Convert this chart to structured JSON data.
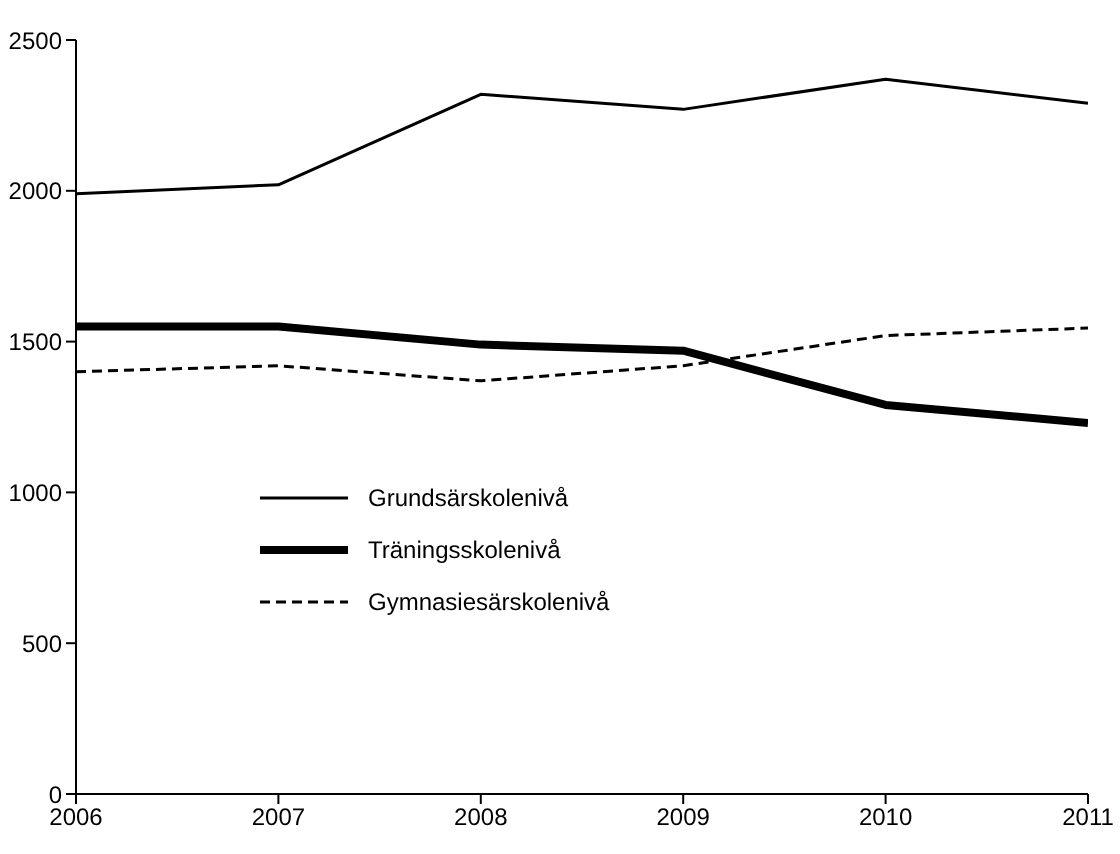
{
  "chart_data": {
    "type": "line",
    "x": [
      2006,
      2007,
      2008,
      2009,
      2010,
      2011
    ],
    "xlim": [
      2006,
      2011
    ],
    "xticks": [
      2006,
      2007,
      2008,
      2009,
      2010,
      2011
    ],
    "ylim": [
      0,
      2500
    ],
    "yticks": [
      0,
      500,
      1000,
      1500,
      2000,
      2500
    ],
    "grid": false,
    "legend": "left",
    "marker": "none",
    "series": [
      {
        "name": "Grundsärskolenivå",
        "color": "#000000",
        "line_style": "solid",
        "values": [
          1990,
          2020,
          2320,
          2270,
          2370,
          2290
        ]
      },
      {
        "name": "Träningsskolenivå",
        "color": "#000000",
        "line_style": "solid",
        "values": [
          1550,
          1550,
          1490,
          1470,
          1290,
          1230
        ]
      },
      {
        "name": "Gymnasiesärskolenivå",
        "color": "#000000",
        "line_style": "dashed",
        "values": [
          1400,
          1420,
          1370,
          1420,
          1520,
          1545
        ]
      }
    ]
  }
}
